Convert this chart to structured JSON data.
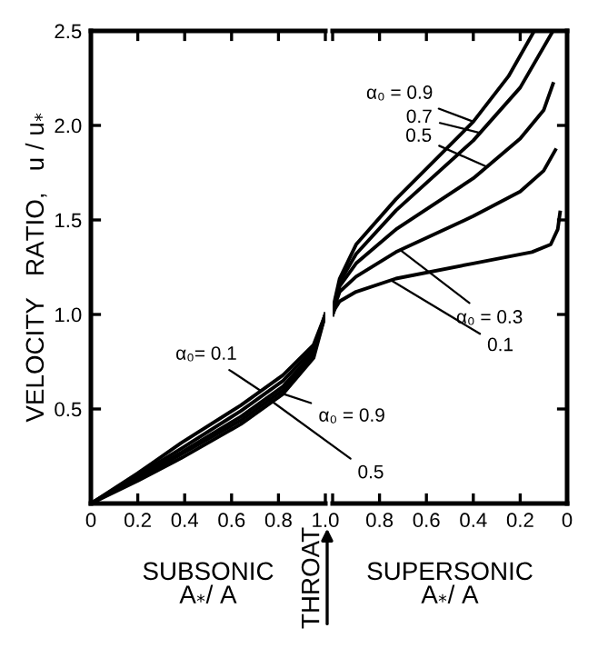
{
  "chart_data": [
    {
      "type": "line",
      "ylabel": "VELOCITY   RATIO,   u / u$_{*}$",
      "xlabel": "SUBSONIC\nA$_{*}$/ A",
      "xlim": [
        0,
        1
      ],
      "ylim": [
        0,
        2.5
      ],
      "xticks": [
        0,
        0.2,
        0.4,
        0.6,
        0.8,
        {
          "value": 1.0,
          "label": "1.0"
        }
      ],
      "yticks": [
        0.5,
        {
          "value": 1.0,
          "label": "1.0"
        },
        1.5,
        {
          "value": 2.0,
          "label": "2.0"
        },
        2.5
      ],
      "grid": false,
      "marker": "none",
      "line_style": "solid",
      "series": [
        {
          "color": "#000000",
          "x": [
            0,
            0.2,
            0.385,
            0.64,
            0.82,
            0.95,
            1.0
          ],
          "values": [
            0,
            0.16,
            0.32,
            0.52,
            0.68,
            0.84,
            1.0
          ]
        },
        {
          "color": "#000000",
          "x": [
            0,
            0.2,
            0.385,
            0.64,
            0.82,
            0.95,
            1.0
          ],
          "values": [
            0,
            0.15,
            0.29,
            0.49,
            0.65,
            0.82,
            1.0
          ]
        },
        {
          "color": "#000000",
          "x": [
            0,
            0.2,
            0.385,
            0.64,
            0.82,
            0.95,
            1.0
          ],
          "values": [
            0,
            0.14,
            0.27,
            0.46,
            0.62,
            0.8,
            1.0
          ]
        },
        {
          "color": "#000000",
          "x": [
            0,
            0.2,
            0.385,
            0.64,
            0.82,
            0.95,
            1.0
          ],
          "values": [
            0,
            0.13,
            0.26,
            0.44,
            0.6,
            0.79,
            1.0
          ]
        },
        {
          "color": "#000000",
          "x": [
            0,
            0.2,
            0.385,
            0.64,
            0.82,
            0.95,
            1.0
          ],
          "values": [
            0,
            0.12,
            0.24,
            0.42,
            0.58,
            0.77,
            1.0
          ]
        }
      ],
      "annotations": [
        {
          "text": "α₀= 0.1",
          "x": 0.72,
          "y": 0.6
        },
        {
          "text": "α₀ = 0.9",
          "x": 0.82,
          "y": 0.58
        },
        {
          "text": "0.5",
          "x": 0.75,
          "y": 0.56
        },
        "THROAT"
      ]
    },
    {
      "type": "line",
      "xlabel": "SUPERSONIC\nA$_{*}$/ A",
      "xlim": [
        1,
        0
      ],
      "ylim": [
        0,
        2.5
      ],
      "xticks": [
        {
          "value": 1.0,
          "label": null
        },
        0.8,
        0.6,
        0.4,
        0.2,
        0
      ],
      "yticks": [
        {
          "value": 0.5,
          "label": null
        },
        {
          "value": 1.0,
          "label": null
        },
        {
          "value": 1.5,
          "label": null
        },
        {
          "value": 2.0,
          "label": null
        },
        {
          "value": 2.5,
          "label": null
        }
      ],
      "tick_labels": "x",
      "grid": false,
      "marker": "none",
      "line_style": "solid",
      "series": [
        {
          "color": "#000000",
          "x": [
            1.0,
            0.99,
            0.97,
            0.9,
            0.73,
            0.4,
            0.15,
            0.07,
            0.04,
            0.03
          ],
          "values": [
            1.0,
            1.03,
            1.07,
            1.12,
            1.19,
            1.27,
            1.33,
            1.37,
            1.45,
            1.54
          ]
        },
        {
          "color": "#000000",
          "x": [
            1.0,
            0.99,
            0.97,
            0.9,
            0.73,
            0.4,
            0.2,
            0.1,
            0.05
          ],
          "values": [
            1.0,
            1.05,
            1.12,
            1.2,
            1.33,
            1.52,
            1.65,
            1.76,
            1.87
          ]
        },
        {
          "color": "#000000",
          "x": [
            1.0,
            0.99,
            0.97,
            0.9,
            0.73,
            0.4,
            0.2,
            0.1,
            0.06
          ],
          "values": [
            1.0,
            1.06,
            1.15,
            1.27,
            1.45,
            1.72,
            1.93,
            2.08,
            2.22
          ]
        },
        {
          "color": "#000000",
          "x": [
            1.0,
            0.99,
            0.97,
            0.9,
            0.73,
            0.4,
            0.2,
            0.06
          ],
          "values": [
            1.0,
            1.07,
            1.17,
            1.32,
            1.55,
            1.92,
            2.2,
            2.5
          ]
        },
        {
          "color": "#000000",
          "x": [
            1.0,
            0.99,
            0.97,
            0.9,
            0.73,
            0.4,
            0.25,
            0.14
          ],
          "values": [
            1.0,
            1.08,
            1.19,
            1.37,
            1.61,
            2.02,
            2.26,
            2.5
          ]
        }
      ],
      "annotations": [
        {
          "text": "α₀ = 0.9",
          "x": 0.4,
          "y": 2.02
        },
        {
          "text": "0.7",
          "x": 0.37,
          "y": 1.96
        },
        {
          "text": "0.5",
          "x": 0.34,
          "y": 1.78
        },
        {
          "text": "α₀ = 0.3",
          "x": 0.71,
          "y": 1.34
        },
        {
          "text": "0.1",
          "x": 0.75,
          "y": 1.18
        }
      ]
    }
  ]
}
